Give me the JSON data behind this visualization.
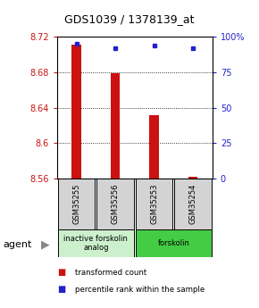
{
  "title": "GDS1039 / 1378139_at",
  "samples": [
    "GSM35255",
    "GSM35256",
    "GSM35253",
    "GSM35254"
  ],
  "transformed_counts": [
    8.711,
    8.679,
    8.632,
    8.562
  ],
  "percentile_ranks": [
    95,
    92,
    94,
    92
  ],
  "ymin": 8.56,
  "ymax": 8.72,
  "yticks_left": [
    8.56,
    8.6,
    8.64,
    8.68,
    8.72
  ],
  "yticks_right": [
    0,
    25,
    50,
    75,
    100
  ],
  "groups": [
    {
      "label": "inactive forskolin\nanalog",
      "start": 0,
      "end": 2,
      "color": "#ccf0cc"
    },
    {
      "label": "forskolin",
      "start": 2,
      "end": 4,
      "color": "#44cc44"
    }
  ],
  "bar_color": "#cc1111",
  "dot_color": "#2222cc",
  "left_tick_color": "#cc1111",
  "right_tick_color": "#2222cc",
  "background_color": "#ffffff",
  "agent_label": "agent",
  "legend_items": [
    {
      "label": "transformed count",
      "color": "#cc1111"
    },
    {
      "label": "percentile rank within the sample",
      "color": "#2222cc"
    }
  ]
}
